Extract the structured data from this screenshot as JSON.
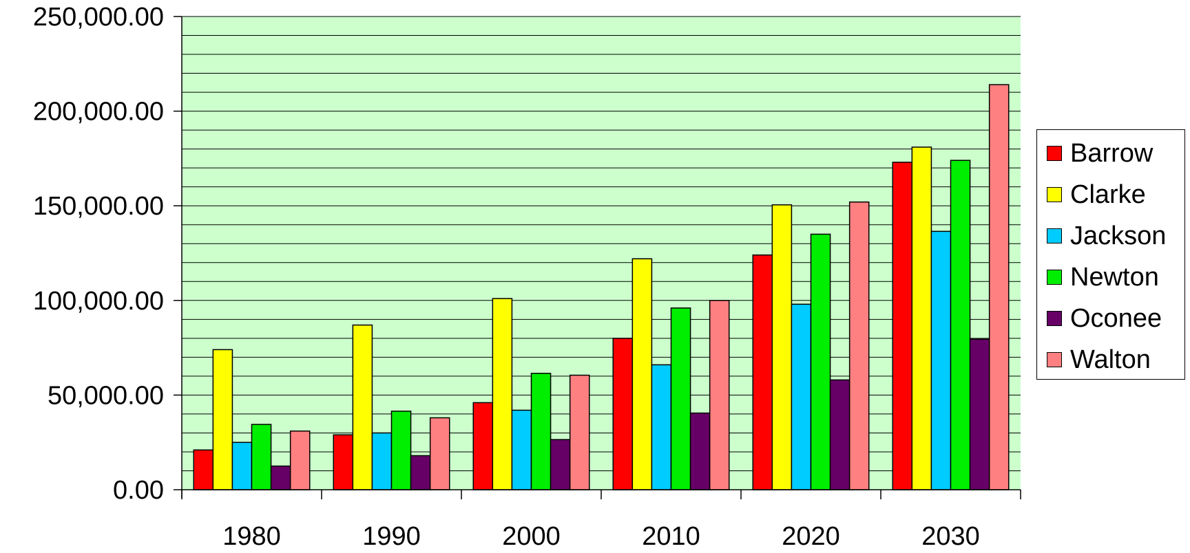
{
  "chart_data": {
    "type": "bar",
    "categories": [
      "1980",
      "1990",
      "2000",
      "2010",
      "2020",
      "2030"
    ],
    "series": [
      {
        "name": "Barrow",
        "color": "#ff0000",
        "values": [
          21000,
          29000,
          46000,
          80000,
          124000,
          173000
        ]
      },
      {
        "name": "Clarke",
        "color": "#ffff00",
        "values": [
          74000,
          87000,
          101000,
          122000,
          150500,
          181000
        ]
      },
      {
        "name": "Jackson",
        "color": "#00ccff",
        "values": [
          25000,
          30000,
          42000,
          66000,
          98000,
          136500
        ]
      },
      {
        "name": "Newton",
        "color": "#00ee00",
        "values": [
          34500,
          41500,
          61500,
          96000,
          135000,
          174000
        ]
      },
      {
        "name": "Oconee",
        "color": "#660066",
        "values": [
          12500,
          18000,
          26500,
          40500,
          58000,
          79500
        ]
      },
      {
        "name": "Walton",
        "color": "#ff8080",
        "values": [
          31000,
          38000,
          60500,
          100000,
          152000,
          214000
        ]
      }
    ],
    "y_ticks": [
      "0.00",
      "50,000.00",
      "100,000.00",
      "150,000.00",
      "200,000.00",
      "250,000.00"
    ],
    "ylim": [
      0,
      250000
    ],
    "minor_grid_step": 10000,
    "plot_background": "#ccffcc",
    "grid": true,
    "legend_position": "right"
  }
}
